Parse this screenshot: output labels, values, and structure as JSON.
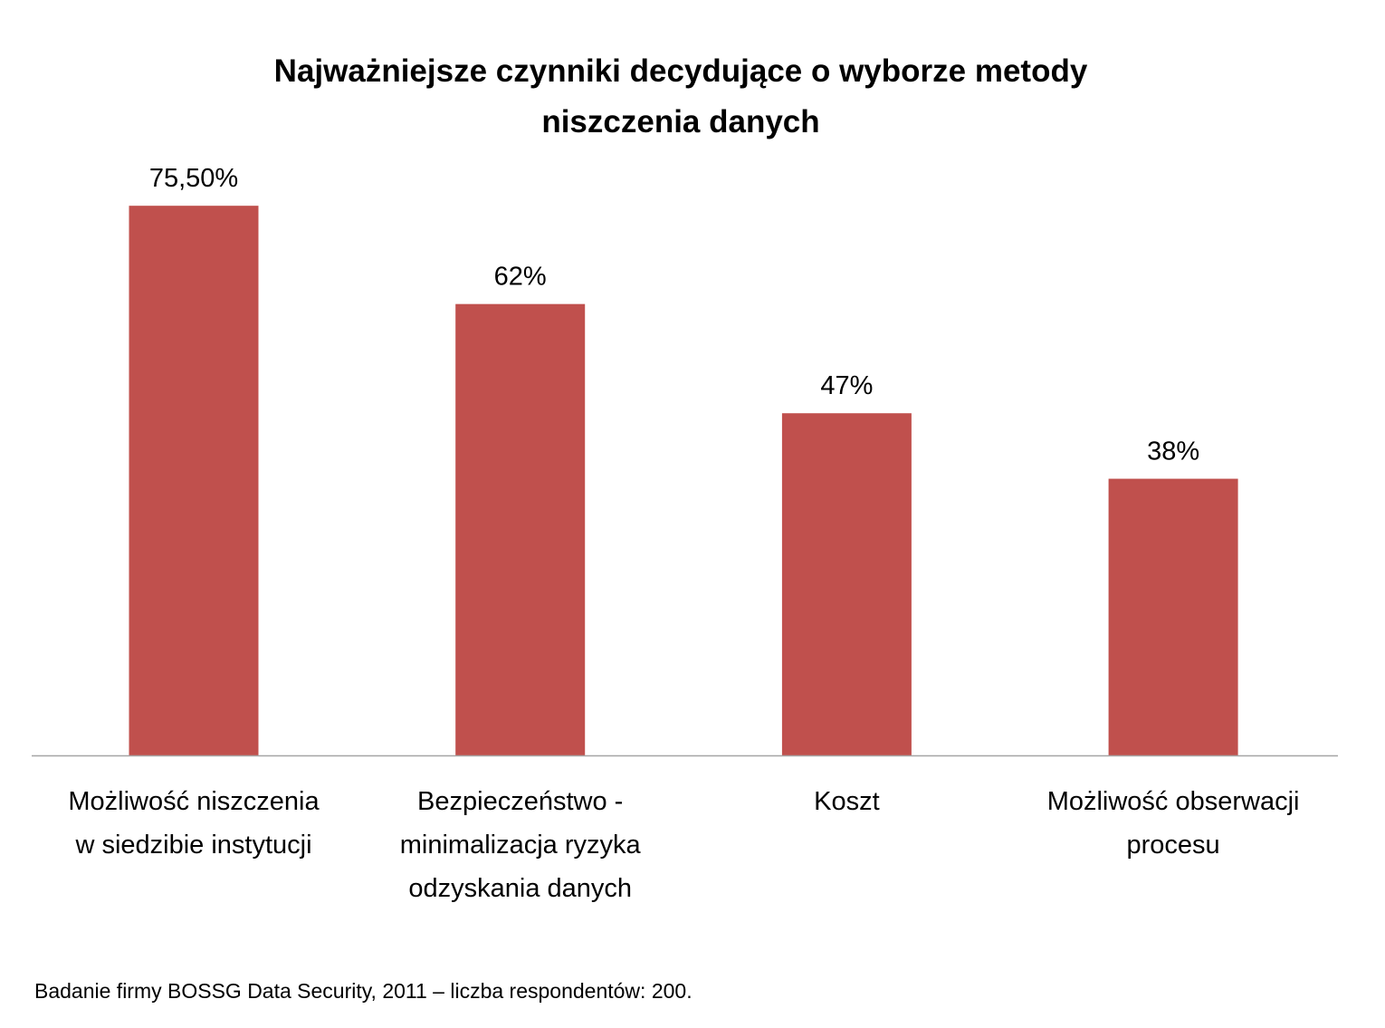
{
  "chart_data": {
    "type": "bar",
    "title": [
      "Najważniejsze czynniki decydujące o wyborze metody",
      "niszczenia danych"
    ],
    "categories": [
      [
        "Możliwość niszczenia",
        "w siedzibie instytucji"
      ],
      [
        "Bezpieczeństwo -",
        "minimalizacja ryzyka",
        "odzyskania danych"
      ],
      [
        "Koszt"
      ],
      [
        "Możliwość obserwacji",
        "procesu"
      ]
    ],
    "values": [
      75.5,
      62,
      47,
      38
    ],
    "data_labels": [
      "75,50%",
      "62%",
      "47%",
      "38%"
    ],
    "xlabel": "",
    "ylabel": "",
    "ylim": [
      0,
      80
    ],
    "grid": false,
    "legend": "none",
    "bar_color": "#C0504D",
    "footnote": "Badanie firmy BOSSG Data Security, 2011 – liczba respondentów: 200."
  }
}
